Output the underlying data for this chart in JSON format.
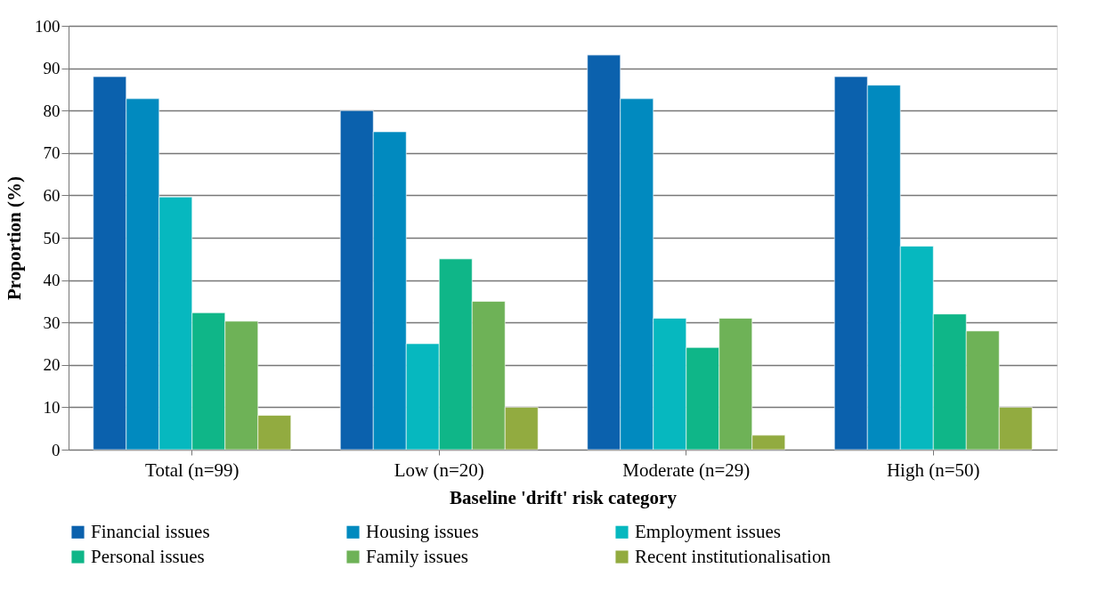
{
  "chart_data": {
    "type": "bar",
    "xlabel": "Baseline 'drift' risk category",
    "ylabel": "Proportion (%)",
    "categories": [
      "Total (n=99)",
      "Low (n=20)",
      "Moderate (n=29)",
      "High (n=50)"
    ],
    "series": [
      {
        "name": "Financial issues",
        "color": "#0b61ad",
        "values": [
          88,
          80,
          93.1,
          88
        ]
      },
      {
        "name": "Housing issues",
        "color": "#018abf",
        "values": [
          82.8,
          75,
          82.8,
          86
        ]
      },
      {
        "name": "Employment issues",
        "color": "#06b8bf",
        "values": [
          59.6,
          25,
          31,
          48
        ]
      },
      {
        "name": "Personal issues",
        "color": "#0fb688",
        "values": [
          32.3,
          45,
          24.1,
          32
        ]
      },
      {
        "name": "Family issues",
        "color": "#6eb257",
        "values": [
          30.3,
          35,
          31,
          28
        ]
      },
      {
        "name": "Recent institutionalisation",
        "color": "#92ab40",
        "values": [
          8.1,
          10,
          3.4,
          10
        ]
      }
    ],
    "ylim": [
      0,
      100
    ],
    "yticks": [
      0,
      10,
      20,
      30,
      40,
      50,
      60,
      70,
      80,
      90,
      100
    ],
    "grid": "y",
    "legend": "bottom"
  }
}
